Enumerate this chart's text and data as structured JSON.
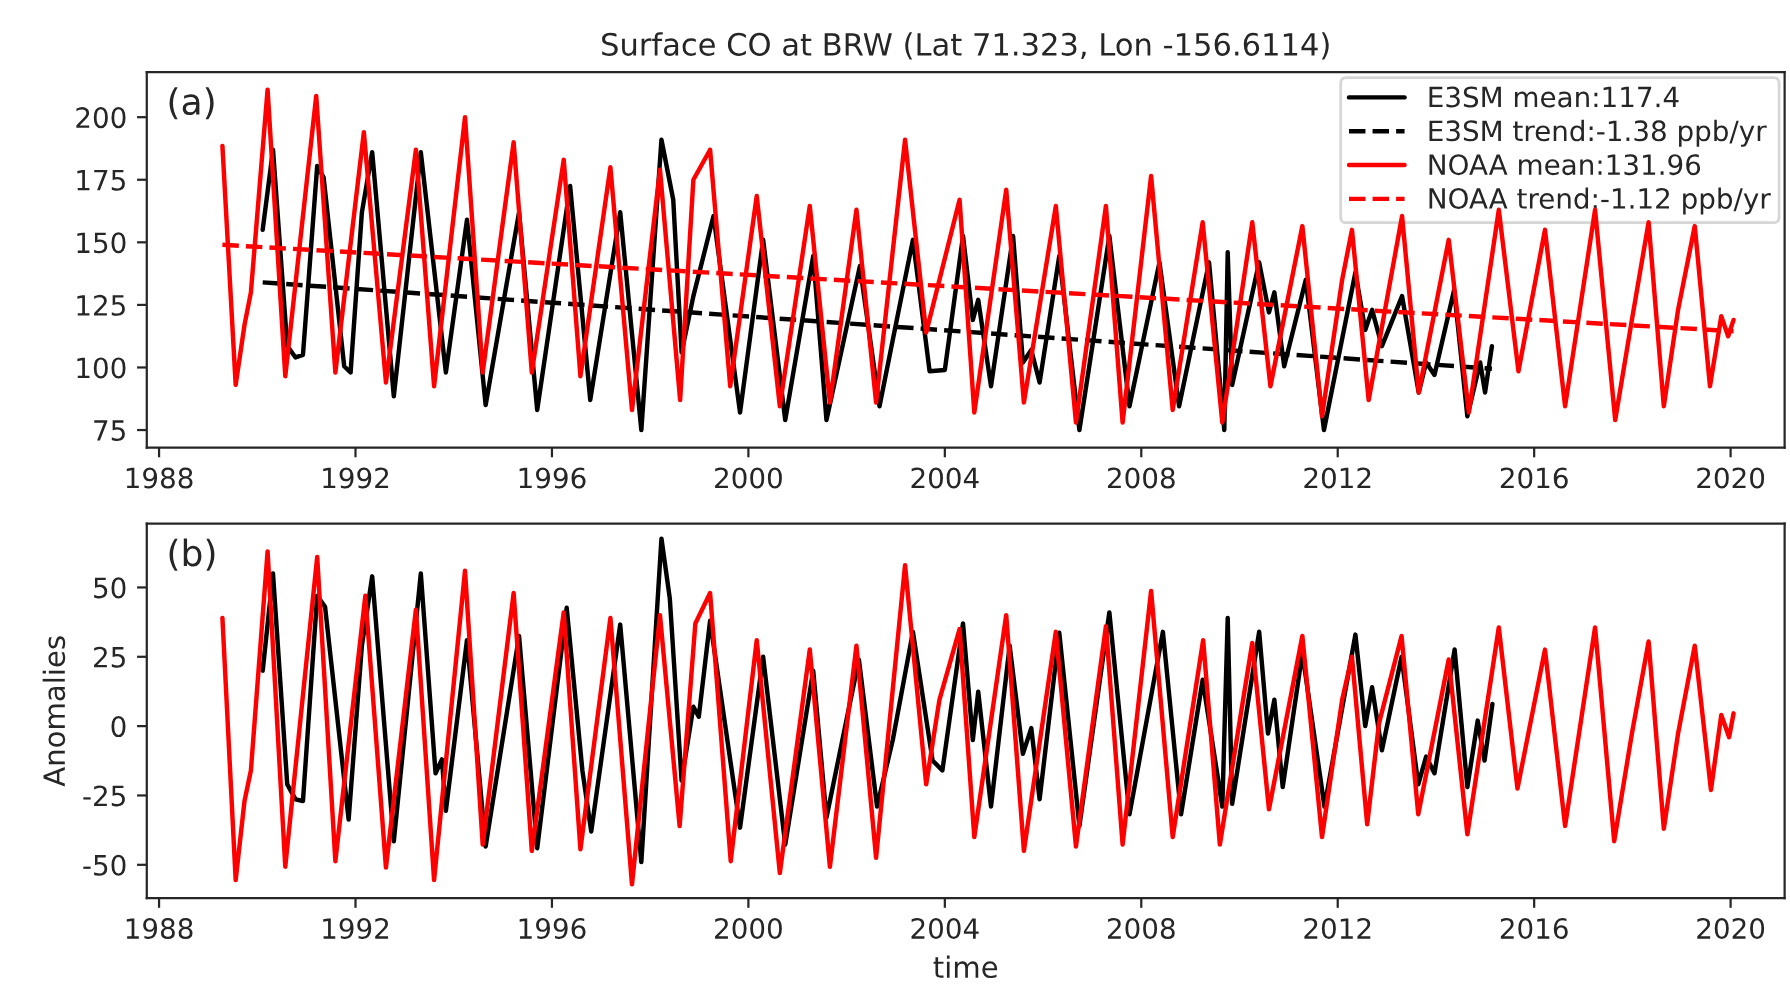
{
  "chart_data": [
    {
      "type": "line",
      "title": "Surface CO at BRW (Lat 71.323, Lon -156.6114)",
      "annotations": [
        "(a)"
      ],
      "legend": "top right",
      "grid": false,
      "xlim": [
        1987.75,
        2021.1
      ],
      "xticks": [
        1988,
        1992,
        1996,
        2000,
        2004,
        2008,
        2012,
        2016,
        2020
      ],
      "ylim": [
        68,
        218
      ],
      "yticks": [
        75,
        100,
        125,
        150,
        175,
        200
      ],
      "series": [
        {
          "name": "E3SM mean:117.4",
          "color": "#000000",
          "line_style": "solid",
          "x": [
            1990.11,
            1990.32,
            1990.61,
            1990.78,
            1990.93,
            1991.22,
            1991.35,
            1991.77,
            1991.9,
            1992.13,
            1992.34,
            1992.78,
            1993.33,
            1993.84,
            1994.27,
            1994.65,
            1995.33,
            1995.7,
            1996.37,
            1996.78,
            1997.39,
            1997.82,
            1998.23,
            1998.47,
            1998.64,
            1998.88,
            1999.29,
            1999.83,
            2000.3,
            2000.75,
            2001.32,
            2001.59,
            2002.27,
            2002.67,
            2002.94,
            2003.35,
            2003.69,
            2004.0,
            2004.37,
            2004.57,
            2004.68,
            2004.94,
            2005.39,
            2005.59,
            2005.76,
            2005.93,
            2006.33,
            2006.74,
            2007.35,
            2007.76,
            2008.37,
            2008.77,
            2009.38,
            2009.69,
            2009.76,
            2009.85,
            2010.4,
            2010.6,
            2010.71,
            2010.91,
            2011.35,
            2011.72,
            2012.36,
            2012.56,
            2012.7,
            2012.9,
            2013.31,
            2013.65,
            2013.8,
            2013.97,
            2014.37,
            2014.64,
            2014.9,
            2015.0,
            2015.14
          ],
          "values": [
            155,
            187,
            108.5,
            104,
            105,
            180.5,
            176,
            100.5,
            98,
            162,
            186,
            88.5,
            186,
            98,
            159,
            85,
            162,
            83,
            172.5,
            87,
            162,
            75,
            191,
            167,
            106,
            128.5,
            160.5,
            82,
            151,
            79,
            144.5,
            79,
            140.5,
            84.5,
            111,
            151,
            98.5,
            99,
            152.5,
            119,
            127,
            92.5,
            152.5,
            102,
            107,
            94,
            144.5,
            75,
            152.5,
            84.5,
            142,
            84.5,
            142,
            75,
            146,
            93,
            142,
            122,
            130,
            100.5,
            135,
            75,
            138,
            115,
            123,
            108.5,
            128.5,
            90,
            102,
            97,
            131,
            80.5,
            102,
            90,
            108.5
          ]
        },
        {
          "name": "E3SM trend:-1.38 ppb/yr",
          "color": "#000000",
          "line_style": "dashed",
          "x": [
            1990.11,
            2015.14
          ],
          "values": [
            134,
            99.5
          ]
        },
        {
          "name": "NOAA mean:131.96",
          "color": "#ff0000",
          "line_style": "solid",
          "x": [
            1989.29,
            1989.56,
            1989.74,
            1989.87,
            1990.21,
            1990.57,
            1991.2,
            1991.59,
            1992.17,
            1992.62,
            1993.23,
            1993.6,
            1994.23,
            1994.59,
            1995.22,
            1995.59,
            1996.24,
            1996.58,
            1997.19,
            1997.63,
            1998.2,
            1998.61,
            1998.88,
            1999.22,
            1999.63,
            2000.17,
            2000.64,
            2001.25,
            2001.66,
            2002.2,
            2002.6,
            2003.19,
            2003.62,
            2003.89,
            2004.3,
            2004.6,
            2005.25,
            2005.61,
            2006.26,
            2006.67,
            2007.28,
            2007.62,
            2008.2,
            2008.64,
            2009.25,
            2009.65,
            2010.26,
            2010.63,
            2011.28,
            2011.68,
            2012.09,
            2012.29,
            2012.63,
            2013.31,
            2013.65,
            2014.26,
            2014.67,
            2015.28,
            2015.68,
            2016.22,
            2016.63,
            2017.24,
            2017.65,
            2017.99,
            2018.33,
            2018.64,
            2018.93,
            2019.27,
            2019.58,
            2019.81,
            2019.95,
            2020.06
          ],
          "values": [
            188.5,
            93,
            117,
            130,
            211,
            96.5,
            208.5,
            98,
            194,
            94,
            187,
            92.5,
            200,
            98,
            190,
            98,
            183,
            96.5,
            180,
            83,
            179,
            87,
            175,
            187,
            92.5,
            168.5,
            84.5,
            164.5,
            86,
            163,
            86,
            191,
            114,
            135,
            167,
            82,
            171,
            86,
            164.5,
            78,
            164.5,
            78,
            176.5,
            83,
            158,
            78,
            158,
            92.5,
            156.5,
            80.5,
            135,
            155,
            87,
            160.5,
            90,
            151,
            82,
            163,
            98.5,
            155,
            84.5,
            163,
            79,
            119,
            158,
            84.5,
            123,
            156.5,
            92.5,
            120.5,
            112.5,
            119
          ]
        },
        {
          "name": "NOAA trend:-1.12 ppb/yr",
          "color": "#ff0000",
          "line_style": "dashed",
          "x": [
            1989.29,
            2020.06
          ],
          "values": [
            149,
            114.5
          ]
        }
      ]
    },
    {
      "type": "line",
      "xlabel": "time",
      "ylabel": "Anomalies",
      "annotations": [
        "(b)"
      ],
      "grid": false,
      "xlim": [
        1987.75,
        2021.1
      ],
      "xticks": [
        1988,
        1992,
        1996,
        2000,
        2004,
        2008,
        2012,
        2016,
        2020
      ],
      "ylim": [
        -62,
        73
      ],
      "yticks": [
        -50,
        -25,
        0,
        25,
        50
      ],
      "series": [
        {
          "color": "#000000",
          "line_style": "solid",
          "x": [
            1990.11,
            1990.32,
            1990.61,
            1990.78,
            1990.93,
            1991.22,
            1991.38,
            1991.86,
            1992.13,
            1992.34,
            1992.78,
            1993.33,
            1993.63,
            1993.76,
            1993.84,
            1994.27,
            1994.65,
            1995.33,
            1995.7,
            1996.3,
            1996.62,
            1996.8,
            1997.39,
            1997.82,
            1998.23,
            1998.4,
            1998.64,
            1998.88,
            1998.99,
            1999.22,
            1999.83,
            2000.3,
            2000.75,
            2001.32,
            2001.59,
            2002.25,
            2002.62,
            2002.94,
            2003.35,
            2003.75,
            2003.95,
            2004.37,
            2004.57,
            2004.68,
            2004.94,
            2005.32,
            2005.59,
            2005.76,
            2005.93,
            2006.33,
            2006.74,
            2007.35,
            2007.76,
            2008.44,
            2008.81,
            2009.25,
            2009.65,
            2009.76,
            2009.85,
            2010.4,
            2010.58,
            2010.71,
            2010.88,
            2011.28,
            2011.73,
            2012.36,
            2012.56,
            2012.7,
            2012.9,
            2013.3,
            2013.64,
            2013.8,
            2013.97,
            2014.38,
            2014.64,
            2014.85,
            2014.99,
            2015.15
          ],
          "values": [
            20,
            55,
            -21,
            -26.4,
            -27,
            47,
            43,
            -33.7,
            29,
            54,
            -41.5,
            55,
            -17,
            -12,
            -30.5,
            31,
            -43.4,
            32.5,
            -44,
            42.7,
            -16,
            -38,
            36.6,
            -49,
            67.6,
            46,
            -19.6,
            7,
            3.4,
            38,
            -36.6,
            25,
            -42.7,
            20,
            -33,
            24,
            -29,
            -5,
            34,
            -12.4,
            -16,
            37,
            -5,
            12.4,
            -29,
            29,
            -10,
            -0.7,
            -26.4,
            33.7,
            -36,
            41,
            -31.8,
            34,
            -31.8,
            16.7,
            -29,
            39,
            -28,
            34,
            -2.7,
            9.5,
            -22,
            26.4,
            -29,
            33,
            0,
            14,
            -8.7,
            25,
            -21,
            -11,
            -17,
            27.6,
            -22,
            2,
            -12.4,
            8
          ]
        },
        {
          "color": "#ff0000",
          "line_style": "solid",
          "x": [
            1989.29,
            1989.56,
            1989.74,
            1989.87,
            1990.21,
            1990.57,
            1991.22,
            1991.59,
            1992.2,
            1992.62,
            1993.23,
            1993.6,
            1994.23,
            1994.59,
            1995.22,
            1995.59,
            1996.24,
            1996.58,
            1997.19,
            1997.63,
            1998.2,
            1998.6,
            1998.92,
            1999.22,
            1999.64,
            2000.17,
            2000.64,
            2001.25,
            2001.66,
            2002.2,
            2002.6,
            2003.19,
            2003.62,
            2003.89,
            2004.3,
            2004.6,
            2005.25,
            2005.61,
            2006.26,
            2006.67,
            2007.28,
            2007.62,
            2008.2,
            2008.64,
            2009.26,
            2009.6,
            2010.26,
            2010.6,
            2011.28,
            2011.68,
            2012.09,
            2012.29,
            2012.6,
            2012.84,
            2013.3,
            2013.64,
            2014.26,
            2014.64,
            2015.28,
            2015.66,
            2016.22,
            2016.63,
            2017.24,
            2017.63,
            2017.99,
            2018.33,
            2018.64,
            2018.93,
            2019.27,
            2019.6,
            2019.81,
            2019.97,
            2020.06
          ],
          "values": [
            39,
            -55.5,
            -27,
            -16,
            63,
            -50.7,
            61,
            -48.7,
            47,
            -51,
            42,
            -55.5,
            56,
            -42.7,
            48,
            -45,
            41,
            -44.4,
            39,
            -57,
            40,
            -36,
            37,
            48,
            -48.7,
            31,
            -53,
            27.6,
            -50.7,
            29,
            -47.5,
            58,
            -21,
            9.5,
            35,
            -40,
            40,
            -45,
            34,
            -43.4,
            36,
            -42.7,
            48.7,
            -40,
            31,
            -42.7,
            30,
            -30,
            32.5,
            -40,
            9.5,
            25,
            -35.4,
            1,
            32.5,
            -31.8,
            24,
            -39,
            35.6,
            -22.5,
            27.6,
            -36,
            35.6,
            -41.5,
            -2.7,
            30.5,
            -37,
            -2.7,
            29,
            -23,
            4,
            -4,
            4.6
          ]
        }
      ]
    }
  ]
}
